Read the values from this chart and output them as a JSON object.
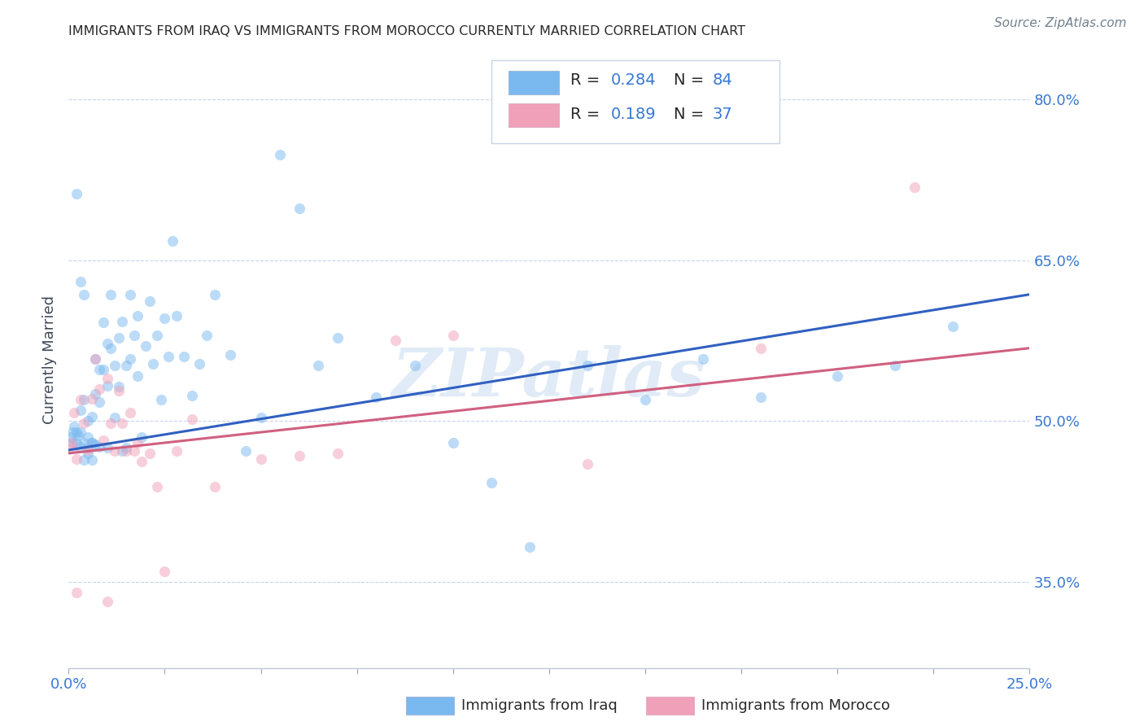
{
  "title": "IMMIGRANTS FROM IRAQ VS IMMIGRANTS FROM MOROCCO CURRENTLY MARRIED CORRELATION CHART",
  "source": "Source: ZipAtlas.com",
  "ylabel": "Currently Married",
  "yticks": [
    0.35,
    0.5,
    0.65,
    0.8
  ],
  "ytick_labels": [
    "35.0%",
    "50.0%",
    "65.0%",
    "80.0%"
  ],
  "xlim": [
    0.0,
    0.25
  ],
  "ylim": [
    0.27,
    0.845
  ],
  "iraq_R": "0.284",
  "iraq_N": "84",
  "morocco_R": "0.189",
  "morocco_N": "37",
  "iraq_color": "#7ab8f0",
  "morocco_color": "#f0a0b8",
  "iraq_line_color": "#3060c0",
  "morocco_line_color": "#d06080",
  "background_color": "#ffffff",
  "grid_color": "#c8d4e8",
  "title_color": "#282828",
  "axis_label_color": "#3878d0",
  "legend_text_color": "#282828",
  "legend_value_color": "#3878d0",
  "watermark": "ZIPatlas",
  "iraq_points_x": [
    0.0005,
    0.001,
    0.001,
    0.0015,
    0.002,
    0.002,
    0.0025,
    0.003,
    0.003,
    0.003,
    0.004,
    0.004,
    0.004,
    0.005,
    0.005,
    0.005,
    0.005,
    0.006,
    0.006,
    0.006,
    0.007,
    0.007,
    0.007,
    0.008,
    0.008,
    0.008,
    0.009,
    0.009,
    0.01,
    0.01,
    0.01,
    0.011,
    0.011,
    0.012,
    0.012,
    0.013,
    0.013,
    0.014,
    0.014,
    0.015,
    0.015,
    0.016,
    0.016,
    0.017,
    0.018,
    0.018,
    0.019,
    0.02,
    0.021,
    0.022,
    0.023,
    0.024,
    0.025,
    0.026,
    0.027,
    0.028,
    0.03,
    0.032,
    0.034,
    0.036,
    0.038,
    0.042,
    0.046,
    0.05,
    0.055,
    0.06,
    0.065,
    0.07,
    0.08,
    0.09,
    0.1,
    0.11,
    0.12,
    0.135,
    0.15,
    0.165,
    0.18,
    0.2,
    0.215,
    0.23,
    0.002,
    0.004,
    0.003,
    0.006
  ],
  "iraq_points_y": [
    0.485,
    0.49,
    0.48,
    0.495,
    0.49,
    0.48,
    0.487,
    0.476,
    0.51,
    0.49,
    0.464,
    0.52,
    0.48,
    0.47,
    0.5,
    0.485,
    0.475,
    0.464,
    0.504,
    0.48,
    0.558,
    0.525,
    0.478,
    0.548,
    0.518,
    0.476,
    0.592,
    0.548,
    0.572,
    0.533,
    0.475,
    0.618,
    0.568,
    0.552,
    0.503,
    0.578,
    0.532,
    0.472,
    0.593,
    0.552,
    0.475,
    0.618,
    0.558,
    0.58,
    0.598,
    0.542,
    0.485,
    0.57,
    0.612,
    0.553,
    0.58,
    0.52,
    0.596,
    0.56,
    0.668,
    0.598,
    0.56,
    0.524,
    0.553,
    0.58,
    0.618,
    0.562,
    0.472,
    0.503,
    0.748,
    0.698,
    0.552,
    0.578,
    0.522,
    0.552,
    0.48,
    0.443,
    0.383,
    0.552,
    0.52,
    0.558,
    0.522,
    0.542,
    0.552,
    0.588,
    0.712,
    0.618,
    0.63,
    0.48
  ],
  "morocco_points_x": [
    0.0005,
    0.001,
    0.0015,
    0.002,
    0.003,
    0.004,
    0.005,
    0.006,
    0.007,
    0.008,
    0.009,
    0.01,
    0.011,
    0.012,
    0.013,
    0.014,
    0.015,
    0.016,
    0.017,
    0.018,
    0.019,
    0.021,
    0.023,
    0.025,
    0.028,
    0.032,
    0.038,
    0.05,
    0.06,
    0.07,
    0.085,
    0.1,
    0.135,
    0.18,
    0.22,
    0.002,
    0.01
  ],
  "morocco_points_y": [
    0.48,
    0.475,
    0.508,
    0.465,
    0.52,
    0.498,
    0.473,
    0.521,
    0.558,
    0.53,
    0.482,
    0.54,
    0.498,
    0.472,
    0.528,
    0.498,
    0.472,
    0.508,
    0.472,
    0.48,
    0.462,
    0.47,
    0.439,
    0.36,
    0.472,
    0.502,
    0.439,
    0.465,
    0.468,
    0.47,
    0.575,
    0.58,
    0.46,
    0.568,
    0.718,
    0.34,
    0.332
  ],
  "marker_size": 90,
  "marker_alpha": 0.5,
  "line_width": 2.2
}
